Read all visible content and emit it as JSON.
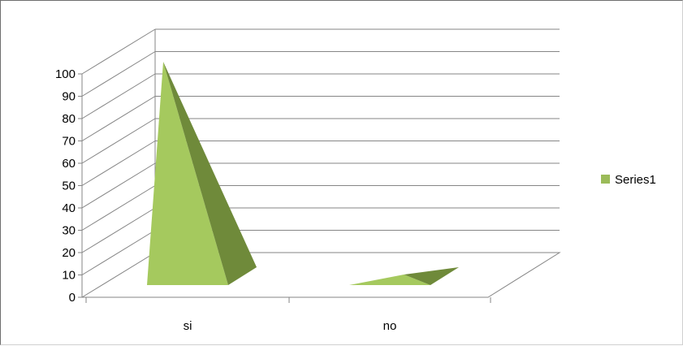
{
  "chart_data": {
    "type": "bar",
    "bar_shape": "pyramid",
    "three_d": true,
    "categories": [
      "si",
      "no"
    ],
    "series": [
      {
        "name": "Series1",
        "values": [
          100,
          0
        ],
        "color": "#9bbb59"
      }
    ],
    "ylim": [
      0,
      100
    ],
    "y_ticks": [
      "0",
      "10",
      "20",
      "30",
      "40",
      "50",
      "60",
      "70",
      "80",
      "90",
      "100"
    ],
    "grid": true,
    "legend_position": "right",
    "colors": {
      "front": "#a5c95e",
      "side": "#6f8a3a",
      "grid": "#868686",
      "axis": "#868686"
    }
  }
}
